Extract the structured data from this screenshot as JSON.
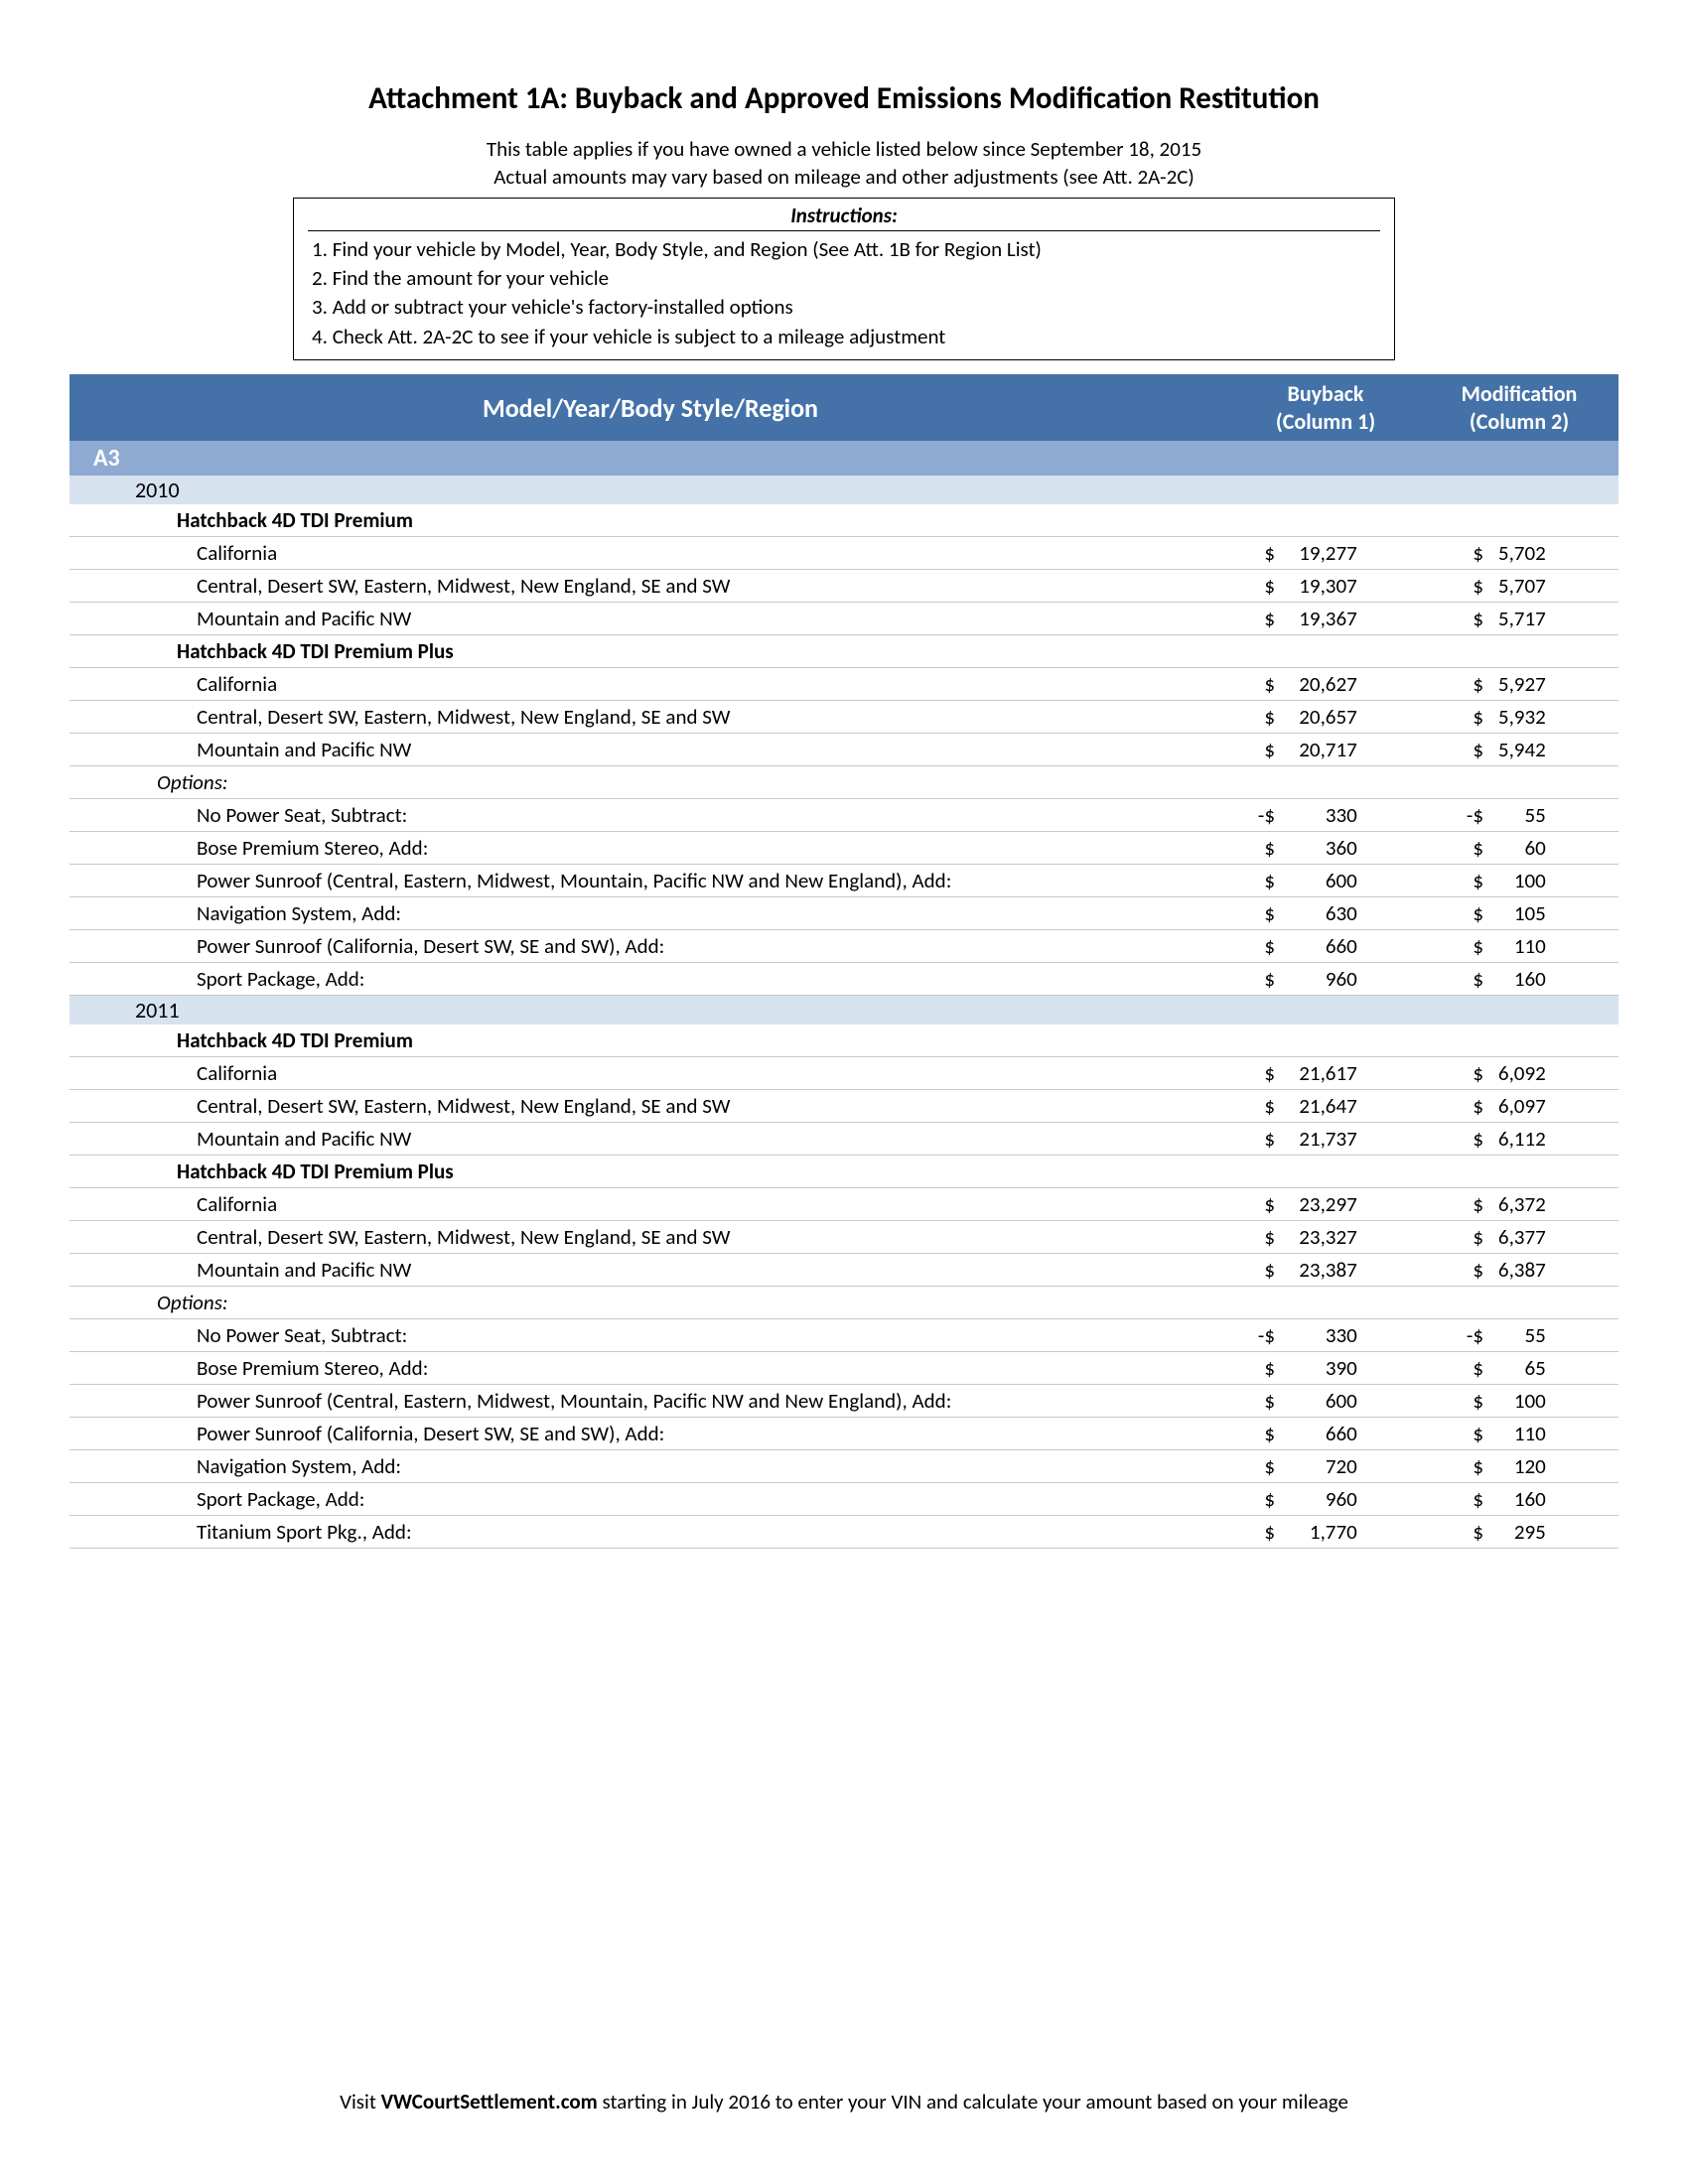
{
  "title": "Attachment 1A: Buyback and Approved Emissions Modification Restitution",
  "subtitle1": "This table applies if you have owned a vehicle listed below since September 18, 2015",
  "subtitle2": "Actual amounts may vary based on mileage and other adjustments (see Att. 2A-2C)",
  "instructions": {
    "title": "Instructions:",
    "items": [
      "1. Find your vehicle by Model, Year, Body Style, and Region (See Att. 1B for Region List)",
      "2. Find the amount  for your vehicle",
      "3. Add or subtract your vehicle's factory-installed options",
      "4. Check Att. 2A-2C to see if your vehicle is subject to a mileage adjustment"
    ]
  },
  "header": {
    "model": "Model/Year/Body Style/Region",
    "buyback_l1": "Buyback",
    "buyback_l2": "(Column 1)",
    "mod_l1": "Modification",
    "mod_l2": "(Column 2)"
  },
  "model_label": "A3",
  "years": [
    {
      "year": "2010",
      "trims": [
        {
          "name": "Hatchback 4D TDI Premium",
          "regions": [
            {
              "label": "California",
              "buy_cur": "$",
              "buy_num": "19,277",
              "mod_cur": "$",
              "mod_num": "5,702"
            },
            {
              "label": "Central, Desert SW, Eastern, Midwest, New England, SE and SW",
              "buy_cur": "$",
              "buy_num": "19,307",
              "mod_cur": "$",
              "mod_num": "5,707"
            },
            {
              "label": "Mountain and Pacific NW",
              "buy_cur": "$",
              "buy_num": "19,367",
              "mod_cur": "$",
              "mod_num": "5,717"
            }
          ]
        },
        {
          "name": "Hatchback 4D TDI Premium Plus",
          "regions": [
            {
              "label": "California",
              "buy_cur": "$",
              "buy_num": "20,627",
              "mod_cur": "$",
              "mod_num": "5,927"
            },
            {
              "label": "Central, Desert SW, Eastern, Midwest, New England, SE and SW",
              "buy_cur": "$",
              "buy_num": "20,657",
              "mod_cur": "$",
              "mod_num": "5,932"
            },
            {
              "label": "Mountain and Pacific NW",
              "buy_cur": "$",
              "buy_num": "20,717",
              "mod_cur": "$",
              "mod_num": "5,942"
            }
          ]
        }
      ],
      "options_label": "Options:",
      "options": [
        {
          "label": "No Power Seat, Subtract:",
          "buy_cur": "-$",
          "buy_num": "330",
          "mod_cur": "-$",
          "mod_num": "55"
        },
        {
          "label": "Bose Premium Stereo, Add:",
          "buy_cur": "$",
          "buy_num": "360",
          "mod_cur": "$",
          "mod_num": "60"
        },
        {
          "label": "Power Sunroof (Central, Eastern, Midwest, Mountain, Pacific NW and New England), Add:",
          "buy_cur": "$",
          "buy_num": "600",
          "mod_cur": "$",
          "mod_num": "100"
        },
        {
          "label": "Navigation System, Add:",
          "buy_cur": "$",
          "buy_num": "630",
          "mod_cur": "$",
          "mod_num": "105"
        },
        {
          "label": "Power Sunroof (California, Desert SW, SE and SW), Add:",
          "buy_cur": "$",
          "buy_num": "660",
          "mod_cur": "$",
          "mod_num": "110"
        },
        {
          "label": "Sport Package, Add:",
          "buy_cur": "$",
          "buy_num": "960",
          "mod_cur": "$",
          "mod_num": "160"
        }
      ]
    },
    {
      "year": "2011",
      "trims": [
        {
          "name": "Hatchback 4D TDI Premium",
          "regions": [
            {
              "label": "California",
              "buy_cur": "$",
              "buy_num": "21,617",
              "mod_cur": "$",
              "mod_num": "6,092"
            },
            {
              "label": "Central, Desert SW, Eastern, Midwest, New England, SE and SW",
              "buy_cur": "$",
              "buy_num": "21,647",
              "mod_cur": "$",
              "mod_num": "6,097"
            },
            {
              "label": "Mountain and Pacific NW",
              "buy_cur": "$",
              "buy_num": "21,737",
              "mod_cur": "$",
              "mod_num": "6,112"
            }
          ]
        },
        {
          "name": "Hatchback 4D TDI Premium Plus",
          "regions": [
            {
              "label": "California",
              "buy_cur": "$",
              "buy_num": "23,297",
              "mod_cur": "$",
              "mod_num": "6,372"
            },
            {
              "label": "Central, Desert SW, Eastern, Midwest, New England, SE and SW",
              "buy_cur": "$",
              "buy_num": "23,327",
              "mod_cur": "$",
              "mod_num": "6,377"
            },
            {
              "label": "Mountain and Pacific NW",
              "buy_cur": "$",
              "buy_num": "23,387",
              "mod_cur": "$",
              "mod_num": "6,387"
            }
          ]
        }
      ],
      "options_label": "Options:",
      "options": [
        {
          "label": "No Power Seat, Subtract:",
          "buy_cur": "-$",
          "buy_num": "330",
          "mod_cur": "-$",
          "mod_num": "55"
        },
        {
          "label": "Bose Premium Stereo, Add:",
          "buy_cur": "$",
          "buy_num": "390",
          "mod_cur": "$",
          "mod_num": "65"
        },
        {
          "label": "Power Sunroof (Central, Eastern, Midwest, Mountain, Pacific NW and New England), Add:",
          "buy_cur": "$",
          "buy_num": "600",
          "mod_cur": "$",
          "mod_num": "100"
        },
        {
          "label": "Power Sunroof (California, Desert SW, SE and SW), Add:",
          "buy_cur": "$",
          "buy_num": "660",
          "mod_cur": "$",
          "mod_num": "110"
        },
        {
          "label": "Navigation System, Add:",
          "buy_cur": "$",
          "buy_num": "720",
          "mod_cur": "$",
          "mod_num": "120"
        },
        {
          "label": "Sport Package, Add:",
          "buy_cur": "$",
          "buy_num": "960",
          "mod_cur": "$",
          "mod_num": "160"
        },
        {
          "label": "Titanium Sport Pkg., Add:",
          "buy_cur": "$",
          "buy_num": "1,770",
          "mod_cur": "$",
          "mod_num": "295"
        }
      ]
    }
  ],
  "footer_pre": "Visit ",
  "footer_site": "VWCourtSettlement.com",
  "footer_post": "  starting in July 2016 to enter your VIN and calculate your amount based on your mileage",
  "colors": {
    "header_bg": "#4472a8",
    "model_bg": "#8faad2",
    "year_bg": "#d7e2ef",
    "row_border": "#c9c9c9"
  }
}
